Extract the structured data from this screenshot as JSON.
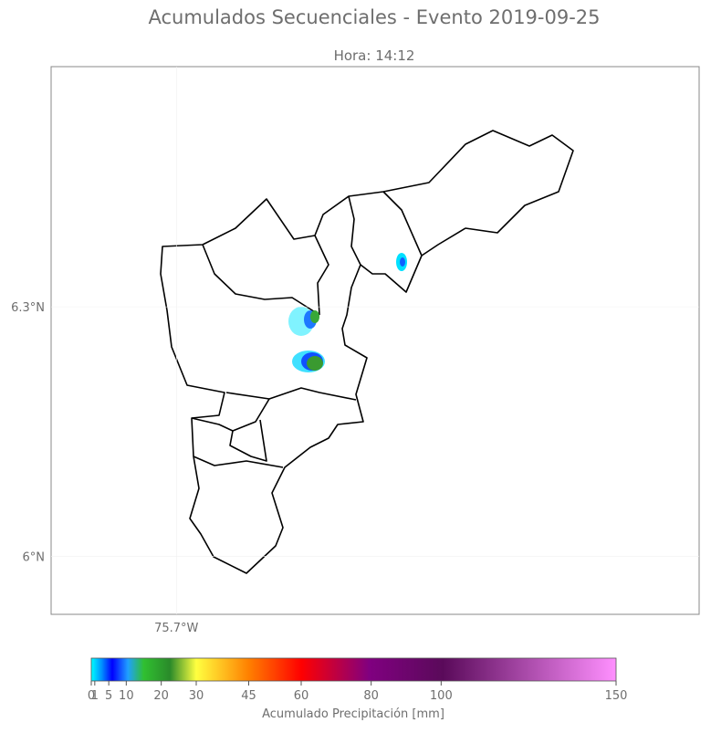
{
  "title": "Acumulados Secuenciales - Evento 2019-09-25",
  "subtitle": "Hora: 14:12",
  "map": {
    "xlim": [
      -75.851,
      -75.07
    ],
    "ylim": [
      5.93,
      6.589
    ],
    "lat_ticks": [
      {
        "value": 6.3,
        "label": "6.3°N"
      },
      {
        "value": 6,
        "label": "6°N"
      }
    ],
    "lon_ticks": [
      {
        "value": -75.7,
        "label": "75.7°W"
      }
    ]
  },
  "colorbar": {
    "label": "Acumulado Precipitación [mm]",
    "lim": [
      0,
      150
    ],
    "ticks": [
      0,
      1,
      5,
      10,
      20,
      30,
      45,
      60,
      80,
      100,
      150
    ]
  }
}
